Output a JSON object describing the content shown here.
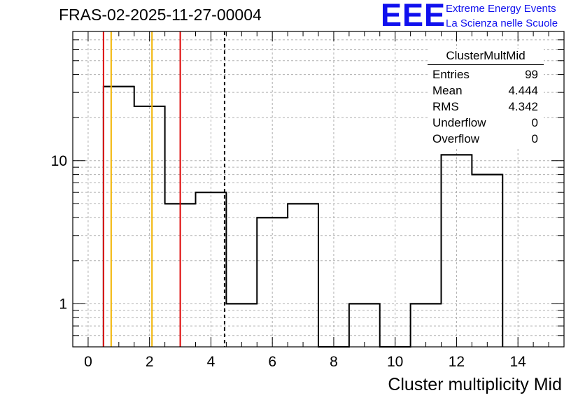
{
  "histogram": {
    "title": "FRAS-02-2025-11-27-00004",
    "name": "ClusterMultMid"
  },
  "logo": {
    "mark": "EEE",
    "line1": "Extreme Energy Events",
    "line2": "La Scienza nelle Scuole"
  },
  "stats": {
    "title": "ClusterMultMid",
    "rows": [
      {
        "label": "Entries",
        "value": "99"
      },
      {
        "label": "Mean",
        "value": "4.444"
      },
      {
        "label": "RMS",
        "value": "4.342"
      },
      {
        "label": "Underflow",
        "value": "0"
      },
      {
        "label": "Overflow",
        "value": "0"
      }
    ]
  },
  "colors": {
    "red_line": "#dd0000",
    "orange_line": "#f2b400",
    "histogram": "#000000",
    "grid": "#b0b0b0"
  },
  "chart_data": {
    "type": "histogram",
    "xlabel": "Cluster multiplicity Mid",
    "ylabel": "",
    "xlim": [
      -0.5,
      15.5
    ],
    "ylim": [
      0.5,
      80
    ],
    "ylog": true,
    "grid": true,
    "x_ticks": [
      "0",
      "2",
      "4",
      "6",
      "8",
      "10",
      "12",
      "14"
    ],
    "y_ticks": [
      "1",
      "10"
    ],
    "bin_width": 1,
    "bin_centers": [
      1,
      2,
      3,
      4,
      5,
      6,
      7,
      8,
      9,
      10,
      11,
      12,
      13
    ],
    "counts": [
      33,
      24,
      5,
      6,
      1,
      4,
      5,
      0,
      1,
      0,
      1,
      11,
      8
    ],
    "vertical_lines": [
      {
        "x": 0.5,
        "color": "red",
        "style": "solid"
      },
      {
        "x": 0.75,
        "color": "orange",
        "style": "solid"
      },
      {
        "x": 2.08,
        "color": "orange",
        "style": "solid"
      },
      {
        "x": 3.0,
        "color": "red",
        "style": "solid"
      },
      {
        "x": 4.444,
        "color": "black",
        "style": "dashed"
      }
    ]
  }
}
